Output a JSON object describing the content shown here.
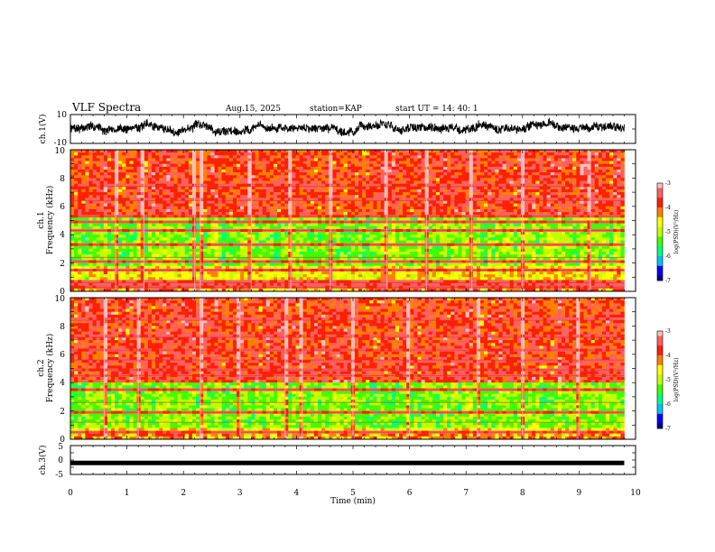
{
  "header": {
    "title": "VLF Spectra",
    "date": "Aug.15, 2025",
    "station": "station=KAP",
    "start_ut": "start  UT  =   14: 40: 1"
  },
  "chart_data": [
    {
      "id": "ch1-waveform",
      "type": "line",
      "ylabel": "ch.1(V)",
      "ylim": [
        -10,
        10
      ],
      "yticks": [
        "10",
        "-10"
      ],
      "xlim_min": [
        0,
        10
      ],
      "samples_per_min": 60,
      "data_end_min": 9.8,
      "signal": {
        "baseline": 0.8,
        "amplitude": 5.5,
        "seed": 7
      }
    },
    {
      "id": "ch1-spectrogram",
      "type": "heatmap",
      "ylabel_lines": [
        "ch.1",
        "Frequency (kHz)"
      ],
      "ylim": [
        0,
        10
      ],
      "yticks": [
        "0",
        "2",
        "4",
        "6",
        "8",
        "10"
      ],
      "xlim_min": [
        0,
        10
      ],
      "data_end_min": 9.8,
      "quiet_band_khz": [
        1.8,
        5.2
      ],
      "noisy_band_khz": [
        5.2,
        10
      ],
      "line_freqs_khz": [
        0.3,
        0.6,
        1.5,
        2.1,
        2.4,
        3.3,
        4.3,
        4.9,
        5.3,
        6.4,
        7.4
      ],
      "impulse_times_min": [
        0.8,
        1.3,
        2.2,
        2.3,
        3.2,
        3.9,
        4.6,
        5.6,
        6.3,
        7.1,
        8.0,
        9.2
      ],
      "seed": 11
    },
    {
      "id": "ch2-spectrogram",
      "type": "heatmap",
      "ylabel_lines": [
        "ch.2",
        "Frequency (kHz)"
      ],
      "ylim": [
        0,
        10
      ],
      "yticks": [
        "0",
        "2",
        "4",
        "6",
        "8",
        "10"
      ],
      "xlim_min": [
        0,
        10
      ],
      "data_end_min": 9.8,
      "quiet_band_khz": [
        0.8,
        4.0
      ],
      "noisy_band_khz": [
        4.0,
        10
      ],
      "line_freqs_khz": [
        0.5,
        1.2,
        1.9,
        2.6,
        3.5,
        4.5,
        4.9,
        5.6,
        6.3,
        7.2,
        8.4
      ],
      "impulse_times_min": [
        0.6,
        1.2,
        2.3,
        3.0,
        3.8,
        4.1,
        5.0,
        6.0,
        7.2,
        8.0,
        9.0
      ],
      "seed": 23
    },
    {
      "id": "ch3-waveform",
      "type": "line",
      "ylabel": "ch.3(V)",
      "ylim": [
        -5,
        5
      ],
      "yticks": [
        "5",
        "0",
        "-5"
      ],
      "xlim_min": [
        0,
        10
      ],
      "value": -1,
      "data_end_min": 9.8,
      "xlabel": "Time (min)",
      "xticks": [
        "0",
        "1",
        "2",
        "3",
        "4",
        "5",
        "6",
        "7",
        "8",
        "9",
        "10"
      ]
    }
  ],
  "colorbars": [
    {
      "id": "colorbar-ch1",
      "label": "log(PSD)(V²/Hz)",
      "ticks": [
        "-3",
        "-4",
        "-5",
        "-6",
        "-7"
      ],
      "range": [
        -7,
        -3
      ]
    },
    {
      "id": "colorbar-ch2",
      "label": "log(PSD)(V²/Hz)",
      "ticks": [
        "-3",
        "-4",
        "-5",
        "-6",
        "-7"
      ],
      "range": [
        -7,
        -3
      ]
    }
  ],
  "colors": {
    "scale": [
      "#000080",
      "#0000ff",
      "#00c0ff",
      "#00ff80",
      "#40ff00",
      "#c0ff00",
      "#ffff00",
      "#ff8000",
      "#ff2000",
      "#ff6060",
      "#ffc0c0"
    ],
    "ink": "#000000"
  }
}
